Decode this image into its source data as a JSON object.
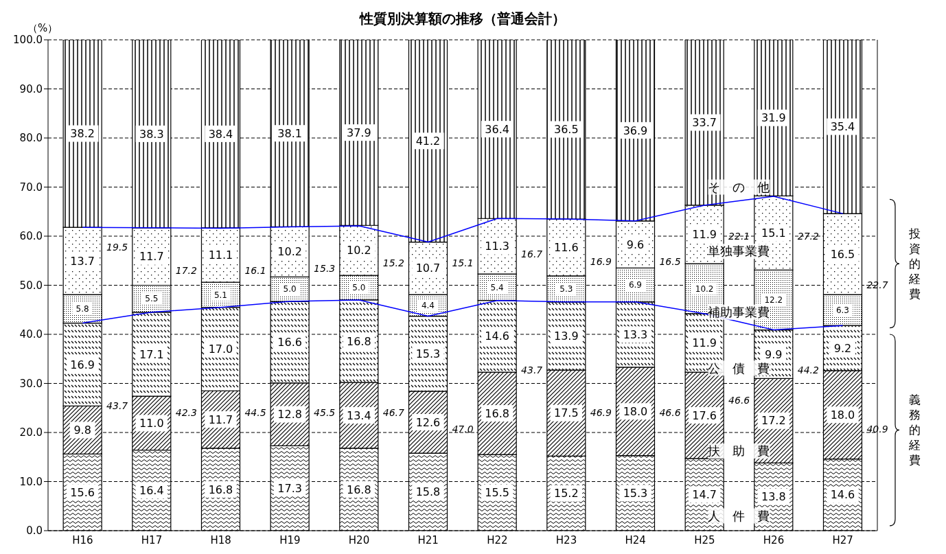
{
  "chart_data": {
    "type": "bar",
    "title": "性質別決算額の推移（普通会計）",
    "ylabel": "（%）",
    "stacked": true,
    "grid": "y",
    "categories": [
      "H16",
      "H17",
      "H18",
      "H19",
      "H20",
      "H21",
      "H22",
      "H23",
      "H24",
      "H25",
      "H26",
      "H27"
    ],
    "ylim": [
      0,
      100
    ],
    "yticks": [
      {
        "value": 0,
        "label": "0.0"
      },
      {
        "value": 10,
        "label": "10.0"
      },
      {
        "value": 20,
        "label": "20.0"
      },
      {
        "value": 30,
        "label": "30.0"
      },
      {
        "value": 40,
        "label": "40.0"
      },
      {
        "value": 50,
        "label": "50.0"
      },
      {
        "value": 60,
        "label": "60.0"
      },
      {
        "value": 70,
        "label": "70.0"
      },
      {
        "value": 80,
        "label": "80.0"
      },
      {
        "value": 90,
        "label": "90.0"
      },
      {
        "value": 100,
        "label": "100.0"
      }
    ],
    "series": [
      {
        "name": "人　件　費",
        "color": "#000000",
        "values": [
          15.6,
          16.4,
          16.8,
          17.3,
          16.8,
          15.8,
          15.5,
          15.2,
          15.3,
          14.7,
          13.8,
          14.6
        ],
        "value_labels": [
          "15.6",
          "16.4",
          "16.8",
          "17.3",
          "16.8",
          "15.8",
          "15.5",
          "15.2",
          "15.3",
          "14.7",
          "13.8",
          "14.6"
        ]
      },
      {
        "name": "扶　助　費",
        "color": "#000000",
        "values": [
          9.8,
          11.0,
          11.7,
          12.8,
          13.4,
          12.6,
          16.8,
          17.5,
          18.0,
          17.6,
          17.2,
          18.0
        ],
        "value_labels": [
          "9.8",
          "11.0",
          "11.7",
          "12.8",
          "13.4",
          "12.6",
          "16.8",
          "17.5",
          "18.0",
          "17.6",
          "17.2",
          "18.0"
        ]
      },
      {
        "name": "公　債　費",
        "color": "#000000",
        "values": [
          16.9,
          17.1,
          17.0,
          16.6,
          16.8,
          15.3,
          14.6,
          13.9,
          13.3,
          11.9,
          9.9,
          9.2
        ],
        "value_labels": [
          "16.9",
          "17.1",
          "17.0",
          "16.6",
          "16.8",
          "15.3",
          "14.6",
          "13.9",
          "13.3",
          "11.9",
          "9.9",
          "9.2"
        ]
      },
      {
        "name": "補助事業費",
        "color": "#000000",
        "values": [
          5.8,
          5.5,
          5.1,
          5.0,
          5.0,
          4.4,
          5.4,
          5.3,
          6.9,
          10.2,
          12.2,
          6.3
        ],
        "value_labels": [
          "5.8",
          "5.5",
          "5.1",
          "5.0",
          "5.0",
          "4.4",
          "5.4",
          "5.3",
          "6.9",
          "10.2",
          "12.2",
          "6.3"
        ]
      },
      {
        "name": "単独事業費",
        "color": "#000000",
        "values": [
          13.7,
          11.7,
          11.1,
          10.2,
          10.2,
          10.7,
          11.3,
          11.6,
          9.6,
          11.9,
          15.1,
          16.5
        ],
        "value_labels": [
          "13.7",
          "11.7",
          "11.1",
          "10.2",
          "10.2",
          "10.7",
          "11.3",
          "11.6",
          "9.6",
          "11.9",
          "15.1",
          "16.5"
        ]
      },
      {
        "name": "そ　の　他",
        "color": "#000000",
        "values": [
          38.2,
          38.3,
          38.4,
          38.1,
          37.9,
          41.2,
          36.4,
          36.5,
          36.9,
          33.7,
          31.9,
          35.4
        ],
        "value_labels": [
          "38.2",
          "38.3",
          "38.4",
          "38.1",
          "37.9",
          "41.2",
          "36.4",
          "36.5",
          "36.9",
          "33.7",
          "31.9",
          "35.4"
        ]
      },
      {
        "type": "line",
        "color": "#0000ff",
        "values": [
          42.3,
          44.5,
          45.5,
          46.7,
          47.0,
          43.7,
          46.9,
          46.6,
          46.6,
          44.2,
          40.9,
          41.8
        ]
      },
      {
        "type": "line",
        "color": "#0000ff",
        "values": [
          61.8,
          61.7,
          61.6,
          61.9,
          62.1,
          58.8,
          63.6,
          63.5,
          63.1,
          66.3,
          68.1,
          64.6
        ]
      }
    ],
    "annotations": [
      "投資的経費",
      "義務的経費",
      "19.5",
      "17.2",
      "16.1",
      "15.3",
      "15.2",
      "15.1",
      "16.7",
      "16.9",
      "16.5",
      "22.1",
      "27.2",
      "22.7",
      "43.7",
      "42.3",
      "44.5",
      "45.5",
      "46.7",
      "47.0",
      "43.7",
      "46.9",
      "46.6",
      "46.6",
      "44.2",
      "40.9"
    ]
  }
}
